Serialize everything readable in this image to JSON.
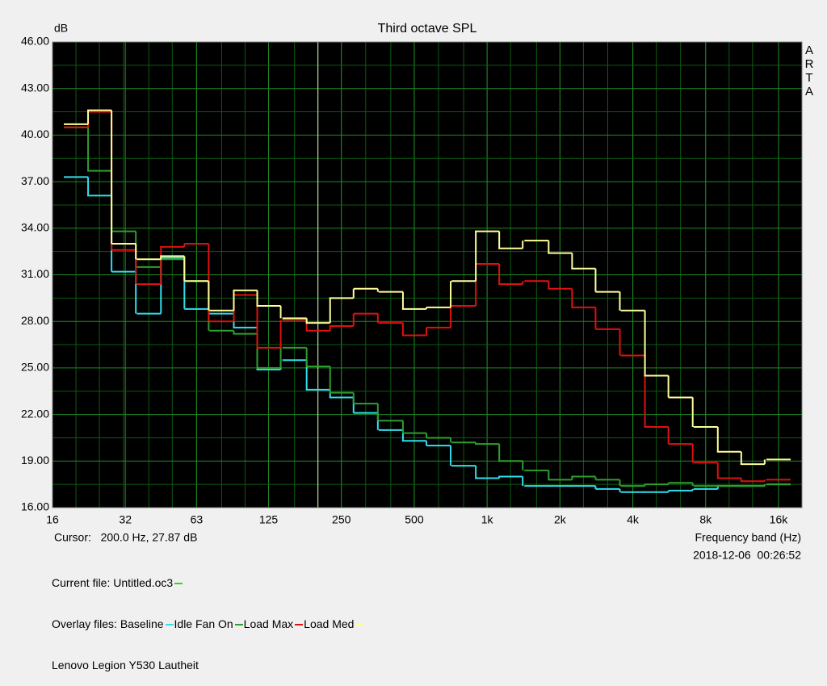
{
  "chart_data": {
    "type": "step",
    "title": "Third octave SPL",
    "y_label": "dB",
    "x_label": "Frequency band (Hz)",
    "side_label": "ARTA",
    "cursor": {
      "label": "Cursor:   200.0 Hz, 27.87 dB",
      "x": 200
    },
    "timestamp": "2018-12-06  00:26:52",
    "current_file": {
      "label": "Current file: Untitled.oc3",
      "color": "#22dd22"
    },
    "overlay_label": "Overlay files: ",
    "caption": "Lenovo Legion Y530 Lautheit",
    "x_scale": "log",
    "grid": true,
    "x": [
      20,
      25,
      31.5,
      40,
      50,
      63,
      80,
      100,
      125,
      160,
      200,
      250,
      315,
      400,
      500,
      630,
      800,
      1000,
      1250,
      1600,
      2000,
      2500,
      3150,
      4000,
      5000,
      6300,
      8000,
      10000,
      12500,
      16000
    ],
    "xlim": [
      16,
      20000
    ],
    "xticks": [
      16,
      32,
      63,
      125,
      250,
      500,
      {
        "value": 1000,
        "label": "1k"
      },
      {
        "value": 2000,
        "label": "2k"
      },
      {
        "value": 4000,
        "label": "4k"
      },
      {
        "value": 8000,
        "label": "8k"
      },
      {
        "value": 16000,
        "label": "16k"
      }
    ],
    "ylim": [
      16,
      46
    ],
    "yticks": [
      {
        "value": 16,
        "label": "16.00"
      },
      {
        "value": 19,
        "label": "19.00"
      },
      {
        "value": 22,
        "label": "22.00"
      },
      {
        "value": 25,
        "label": "25.00"
      },
      {
        "value": 28,
        "label": "28.00"
      },
      {
        "value": 31,
        "label": "31.00"
      },
      {
        "value": 34,
        "label": "34.00"
      },
      {
        "value": 37,
        "label": "37.00"
      },
      {
        "value": 40,
        "label": "40.00"
      },
      {
        "value": 43,
        "label": "43.00"
      },
      {
        "value": 46,
        "label": "46.00"
      }
    ],
    "series": [
      {
        "name": "Baseline",
        "color": "#33dded",
        "values": [
          37.3,
          36.1,
          31.2,
          28.5,
          32.1,
          28.8,
          28.5,
          27.6,
          24.9,
          25.5,
          23.6,
          23.1,
          22.1,
          21.0,
          20.3,
          20.0,
          18.7,
          17.9,
          18.0,
          17.4,
          17.4,
          17.4,
          17.2,
          17.0,
          17.0,
          17.1,
          17.2,
          17.4,
          17.4,
          17.5
        ]
      },
      {
        "name": "Idle Fan On",
        "color": "#2e9e2e",
        "values": [
          40.5,
          37.7,
          33.8,
          31.5,
          32.0,
          30.6,
          27.4,
          27.2,
          25.0,
          26.3,
          25.1,
          23.4,
          22.7,
          21.6,
          20.8,
          20.5,
          20.2,
          20.1,
          19.0,
          18.4,
          17.8,
          18.0,
          17.8,
          17.4,
          17.5,
          17.6,
          17.4,
          17.4,
          17.4,
          17.5
        ]
      },
      {
        "name": "Load Max",
        "color": "#e01010",
        "values": [
          40.5,
          41.5,
          32.6,
          30.4,
          32.8,
          33.0,
          28.0,
          29.7,
          26.3,
          28.1,
          27.4,
          27.7,
          28.5,
          27.9,
          27.1,
          27.6,
          29.0,
          31.7,
          30.4,
          30.6,
          30.1,
          28.9,
          27.5,
          25.8,
          21.2,
          20.1,
          18.9,
          17.9,
          17.7,
          17.8
        ]
      },
      {
        "name": "Load Med",
        "color": "#ffff99",
        "values": [
          40.7,
          41.6,
          33.0,
          32.0,
          32.2,
          30.6,
          28.7,
          30.0,
          29.0,
          28.2,
          27.9,
          29.5,
          30.1,
          29.9,
          28.8,
          28.9,
          30.6,
          33.8,
          32.7,
          33.2,
          32.4,
          31.4,
          29.9,
          28.7,
          24.5,
          23.1,
          21.2,
          19.6,
          18.8,
          19.1
        ]
      }
    ]
  }
}
